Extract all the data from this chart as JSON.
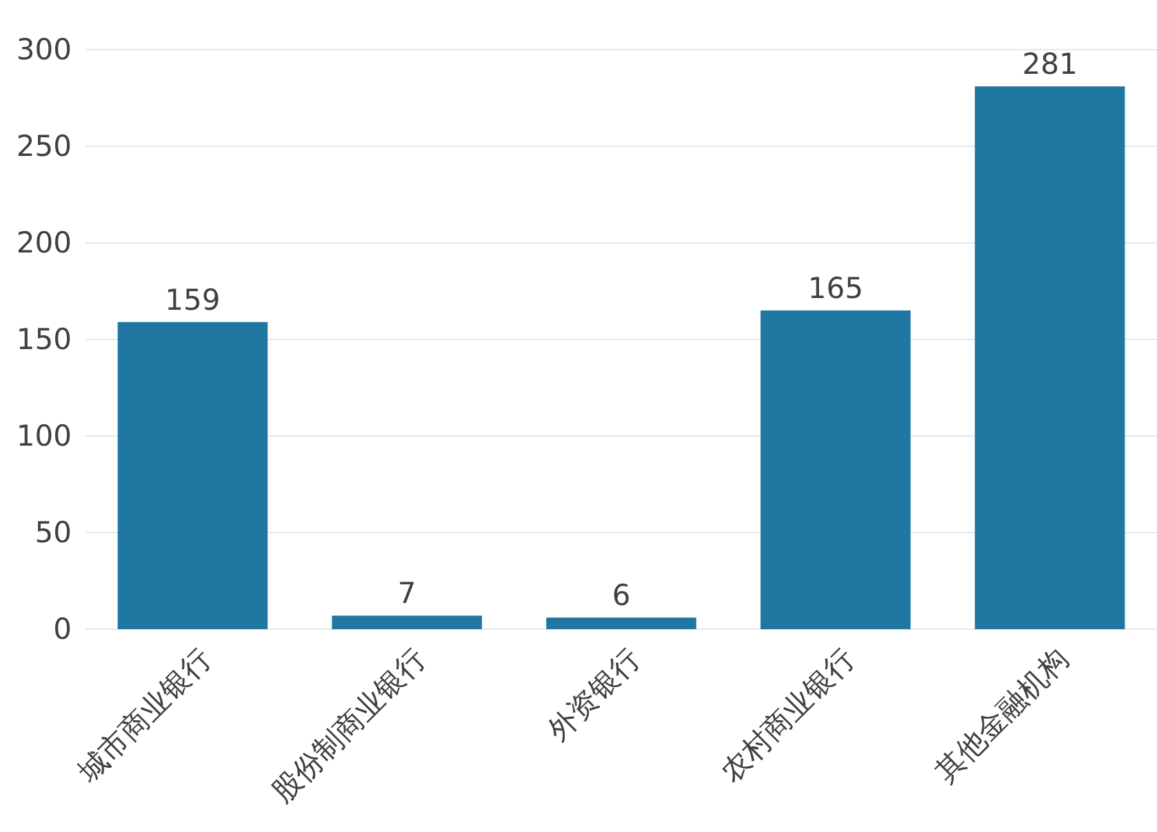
{
  "chart_data": {
    "type": "bar",
    "categories": [
      "城市商业银行",
      "股份制商业银行",
      "外资银行",
      "农村商业银行",
      "其他金融机构"
    ],
    "values": [
      159,
      7,
      6,
      165,
      281
    ],
    "color": "#1f77a2",
    "ylim": [
      0,
      300
    ],
    "yticks": [
      0,
      50,
      100,
      150,
      200,
      250,
      300
    ],
    "grid": "y",
    "data_labels": true
  }
}
